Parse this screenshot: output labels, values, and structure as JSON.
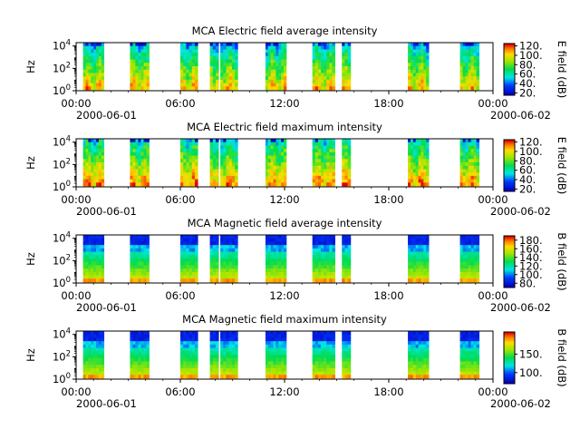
{
  "chart_data": [
    {
      "type": "heatmap",
      "title": "MCA  Electric field average intensity",
      "ylabel": "Hz",
      "y_scale": "log",
      "ylim": [
        1,
        20000
      ],
      "y_ticks": [
        {
          "base": "10",
          "exp": "0"
        },
        {
          "base": "10",
          "exp": "2"
        },
        {
          "base": "10",
          "exp": "4"
        }
      ],
      "x_ticks": [
        "00:00",
        "06:00",
        "12:00",
        "18:00",
        "00:00"
      ],
      "x_start_date": "2000-06-01",
      "x_end_date": "2000-06-02",
      "colorbar_label": "E field (dB)",
      "colorbar_range": [
        15,
        125
      ],
      "colorbar_ticks": [
        "20.",
        "40.",
        "60.",
        "80.",
        "100.",
        "120."
      ],
      "colormap": "rainbow",
      "bursts_hours": [
        [
          0.4,
          1.6
        ],
        [
          3.1,
          4.2
        ],
        [
          6.0,
          7.0
        ],
        [
          7.7,
          8.2
        ],
        [
          8.3,
          9.3
        ],
        [
          10.9,
          12.1
        ],
        [
          13.6,
          14.9
        ],
        [
          15.3,
          15.8
        ],
        [
          19.1,
          20.3
        ],
        [
          22.1,
          23.2
        ]
      ]
    },
    {
      "type": "heatmap",
      "title": "MCA  Electric field maximum intensity",
      "ylabel": "Hz",
      "y_scale": "log",
      "ylim": [
        1,
        20000
      ],
      "y_ticks": [
        {
          "base": "10",
          "exp": "0"
        },
        {
          "base": "10",
          "exp": "2"
        },
        {
          "base": "10",
          "exp": "4"
        }
      ],
      "x_ticks": [
        "00:00",
        "06:00",
        "12:00",
        "18:00",
        "00:00"
      ],
      "x_start_date": "2000-06-01",
      "x_end_date": "2000-06-02",
      "colorbar_label": "E field (dB)",
      "colorbar_range": [
        15,
        125
      ],
      "colorbar_ticks": [
        "20.",
        "40.",
        "60.",
        "80.",
        "100.",
        "120."
      ],
      "colormap": "rainbow",
      "bursts_hours": [
        [
          0.4,
          1.6
        ],
        [
          3.1,
          4.2
        ],
        [
          6.0,
          7.0
        ],
        [
          7.7,
          8.2
        ],
        [
          8.3,
          9.3
        ],
        [
          10.9,
          12.1
        ],
        [
          13.6,
          14.9
        ],
        [
          15.3,
          15.8
        ],
        [
          19.1,
          20.3
        ],
        [
          22.1,
          23.2
        ]
      ]
    },
    {
      "type": "heatmap",
      "title": "MCA  Magnetic field average intensity",
      "ylabel": "Hz",
      "y_scale": "log",
      "ylim": [
        1,
        20000
      ],
      "y_ticks": [
        {
          "base": "10",
          "exp": "0"
        },
        {
          "base": "10",
          "exp": "2"
        },
        {
          "base": "10",
          "exp": "4"
        }
      ],
      "x_ticks": [
        "00:00",
        "06:00",
        "12:00",
        "18:00",
        "00:00"
      ],
      "x_start_date": "2000-06-01",
      "x_end_date": "2000-06-02",
      "colorbar_label": "B field (dB)",
      "colorbar_range": [
        70,
        190
      ],
      "colorbar_ticks": [
        "80.",
        "100.",
        "120.",
        "140.",
        "160.",
        "180."
      ],
      "colormap": "rainbow",
      "bursts_hours": [
        [
          0.4,
          1.6
        ],
        [
          3.1,
          4.2
        ],
        [
          6.0,
          7.0
        ],
        [
          7.7,
          8.2
        ],
        [
          8.3,
          9.3
        ],
        [
          10.9,
          12.1
        ],
        [
          13.6,
          14.9
        ],
        [
          15.3,
          15.8
        ],
        [
          19.1,
          20.3
        ],
        [
          22.1,
          23.2
        ]
      ]
    },
    {
      "type": "heatmap",
      "title": "MCA  Magnetic field maximum intensity",
      "ylabel": "Hz",
      "y_scale": "log",
      "ylim": [
        1,
        20000
      ],
      "y_ticks": [
        {
          "base": "10",
          "exp": "0"
        },
        {
          "base": "10",
          "exp": "2"
        },
        {
          "base": "10",
          "exp": "4"
        }
      ],
      "x_ticks": [
        "00:00",
        "06:00",
        "12:00",
        "18:00",
        "00:00"
      ],
      "x_start_date": "2000-06-01",
      "x_end_date": "2000-06-02",
      "colorbar_label": "B field (dB)",
      "colorbar_range": [
        70,
        210
      ],
      "colorbar_ticks": [
        "100.",
        "150."
      ],
      "colormap": "rainbow",
      "bursts_hours": [
        [
          0.4,
          1.6
        ],
        [
          3.1,
          4.2
        ],
        [
          6.0,
          7.0
        ],
        [
          7.7,
          8.2
        ],
        [
          8.3,
          9.3
        ],
        [
          10.9,
          12.1
        ],
        [
          13.6,
          14.9
        ],
        [
          15.3,
          15.8
        ],
        [
          19.1,
          20.3
        ],
        [
          22.1,
          23.2
        ]
      ]
    }
  ]
}
